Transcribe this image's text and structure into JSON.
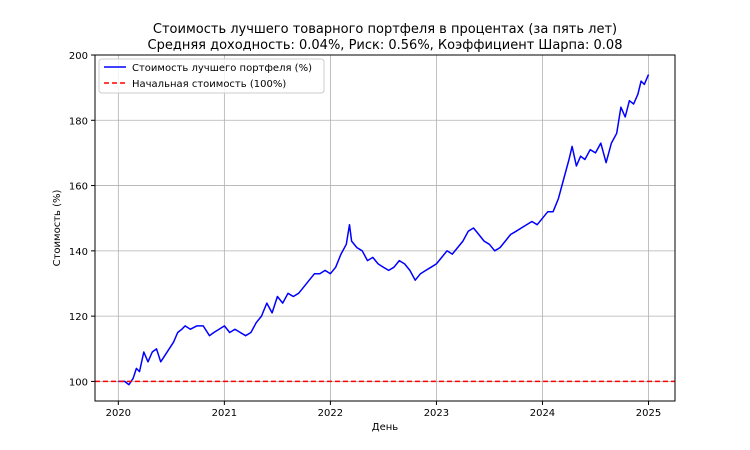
{
  "chart_data": {
    "type": "line",
    "title": "Стоимость лучшего товарного портфеля в процентах (за пять лет)",
    "subtitle": "Средняя доходность: 0.04%, Риск: 0.56%, Коэффициент Шарпа: 0.08",
    "xlabel": "День",
    "ylabel": "Стоимость (%)",
    "xlim": [
      2019.78,
      2025.25
    ],
    "ylim": [
      94,
      200
    ],
    "xticks": [
      2020,
      2021,
      2022,
      2023,
      2024,
      2025
    ],
    "xtick_labels": [
      "2020",
      "2021",
      "2022",
      "2023",
      "2024",
      "2025"
    ],
    "yticks": [
      100,
      120,
      140,
      160,
      180,
      200
    ],
    "ytick_labels": [
      "100",
      "120",
      "140",
      "160",
      "180",
      "200"
    ],
    "grid": true,
    "legend_position": "upper-left",
    "series": [
      {
        "name": "Стоимость лучшего портфеля (%)",
        "color": "#0000ff",
        "style": "solid",
        "x": [
          2020.0,
          2020.06,
          2020.1,
          2020.14,
          2020.17,
          2020.2,
          2020.24,
          2020.28,
          2020.32,
          2020.36,
          2020.4,
          2020.44,
          2020.48,
          2020.52,
          2020.56,
          2020.6,
          2020.63,
          2020.68,
          2020.74,
          2020.8,
          2020.86,
          2020.9,
          2020.95,
          2021.0,
          2021.05,
          2021.1,
          2021.15,
          2021.2,
          2021.25,
          2021.3,
          2021.35,
          2021.4,
          2021.45,
          2021.5,
          2021.55,
          2021.6,
          2021.65,
          2021.7,
          2021.75,
          2021.8,
          2021.85,
          2021.9,
          2021.95,
          2022.0,
          2022.05,
          2022.1,
          2022.15,
          2022.18,
          2022.2,
          2022.25,
          2022.3,
          2022.35,
          2022.4,
          2022.45,
          2022.5,
          2022.55,
          2022.6,
          2022.65,
          2022.7,
          2022.75,
          2022.8,
          2022.85,
          2022.9,
          2022.95,
          2023.0,
          2023.05,
          2023.1,
          2023.15,
          2023.2,
          2023.25,
          2023.3,
          2023.35,
          2023.4,
          2023.45,
          2023.5,
          2023.55,
          2023.6,
          2023.65,
          2023.7,
          2023.75,
          2023.8,
          2023.85,
          2023.9,
          2023.95,
          2024.0,
          2024.05,
          2024.1,
          2024.15,
          2024.2,
          2024.25,
          2024.28,
          2024.32,
          2024.36,
          2024.4,
          2024.45,
          2024.5,
          2024.55,
          2024.6,
          2024.65,
          2024.7,
          2024.74,
          2024.78,
          2024.82,
          2024.86,
          2024.9,
          2024.93,
          2024.96,
          2025.0
        ],
        "y": [
          100,
          100,
          99,
          101,
          104,
          103,
          109,
          106,
          109,
          110,
          106,
          108,
          110,
          112,
          115,
          116,
          117,
          116,
          117,
          117,
          114,
          115,
          116,
          117,
          115,
          116,
          115,
          114,
          115,
          118,
          120,
          124,
          121,
          126,
          124,
          127,
          126,
          127,
          129,
          131,
          133,
          133,
          134,
          133,
          135,
          139,
          142,
          148,
          143,
          141,
          140,
          137,
          138,
          136,
          135,
          134,
          135,
          137,
          136,
          134,
          131,
          133,
          134,
          135,
          136,
          138,
          140,
          139,
          141,
          143,
          146,
          147,
          145,
          143,
          142,
          140,
          141,
          143,
          145,
          146,
          147,
          148,
          149,
          148,
          150,
          152,
          152,
          156,
          162,
          168,
          172,
          166,
          169,
          168,
          171,
          170,
          173,
          167,
          173,
          176,
          184,
          181,
          186,
          185,
          188,
          192,
          191,
          194
        ]
      },
      {
        "name": "Начальная стоимость (100%)",
        "color": "#ff0000",
        "style": "dashed",
        "y_constant": 100
      }
    ]
  }
}
